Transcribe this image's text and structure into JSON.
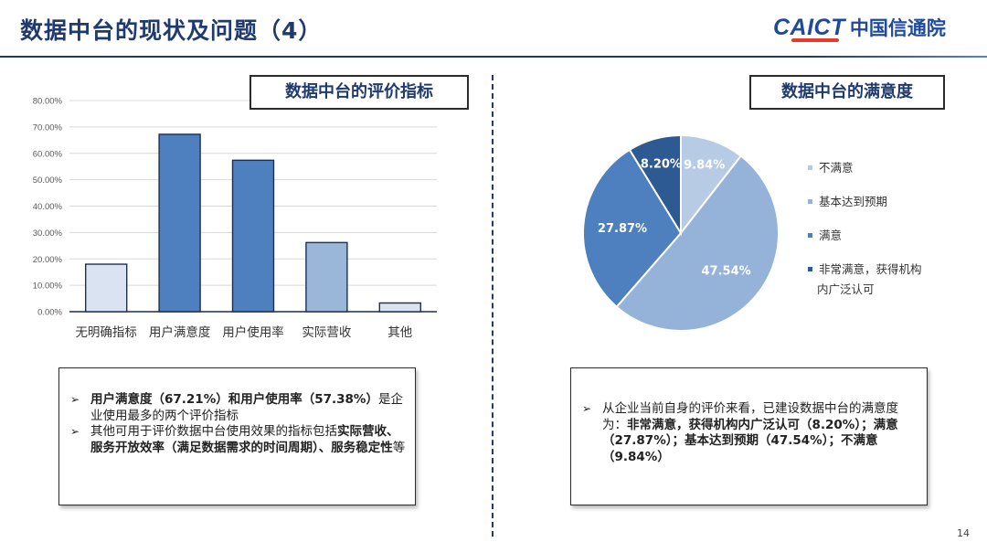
{
  "header": {
    "title": "数据中台的现状及问题（4）"
  },
  "logo": {
    "latin": "CAICT",
    "chinese": "中国信通院"
  },
  "left_section": {
    "title": "数据中台的评价指标"
  },
  "right_section": {
    "title": "数据中台的满意度"
  },
  "colors": {
    "dark_blue": "#1f3a6e",
    "bar_colors": [
      "#dae3f2",
      "#4e7fbf",
      "#4e7fbf",
      "#9ab7d9",
      "#dae3f2"
    ],
    "pie_colors": [
      "#b7cbe4",
      "#95b3d8",
      "#4e7fbf",
      "#2e5a93"
    ]
  },
  "chart_data": [
    {
      "type": "bar",
      "categories": [
        "无明确指标",
        "用户满意度",
        "用户使用率",
        "实际营收",
        "其他"
      ],
      "values": [
        18.0,
        67.21,
        57.38,
        26.2,
        3.3
      ],
      "ylim": [
        0,
        80
      ],
      "yticks": [
        "0.00%",
        "10.00%",
        "20.00%",
        "30.00%",
        "40.00%",
        "50.00%",
        "60.00%",
        "70.00%",
        "80.00%"
      ],
      "grid": true,
      "legend": "none"
    },
    {
      "type": "pie",
      "labels": [
        "不满意",
        "基本达到预期",
        "满意",
        "非常满意，获得机构内广泛认可"
      ],
      "legend_lines": [
        [
          "不满意"
        ],
        [
          "基本达到预期"
        ],
        [
          "满意"
        ],
        [
          "非常满意，获得机构",
          "内广泛认可"
        ]
      ],
      "values": [
        9.84,
        47.54,
        27.87,
        8.2
      ],
      "data_labels": [
        "9.84%",
        "47.54%",
        "27.87%",
        "8.20%"
      ],
      "legend": "right"
    }
  ],
  "left_box": {
    "b1_bold": "用户满意度（67.21%）和用户使用率（57.38%）",
    "b1_rest": "是企业使用最多的两个评价指标",
    "b2_normal": "其他可用于评价数据中台使用效果的指标包括",
    "b2_bold": "实际营收、服务开放效率（满足数据需求的时间周期）、服务稳定性",
    "b2_end": "等"
  },
  "right_box": {
    "normal": "从企业当前自身的评价来看，已建设数据中台的满意度为：",
    "bold": "非常满意，获得机构内广泛认可（8.20%）；满意（27.87%）；基本达到预期（47.54%）；不满意（9.84%）"
  },
  "bullet_glyph": "➢",
  "page_number": "14"
}
